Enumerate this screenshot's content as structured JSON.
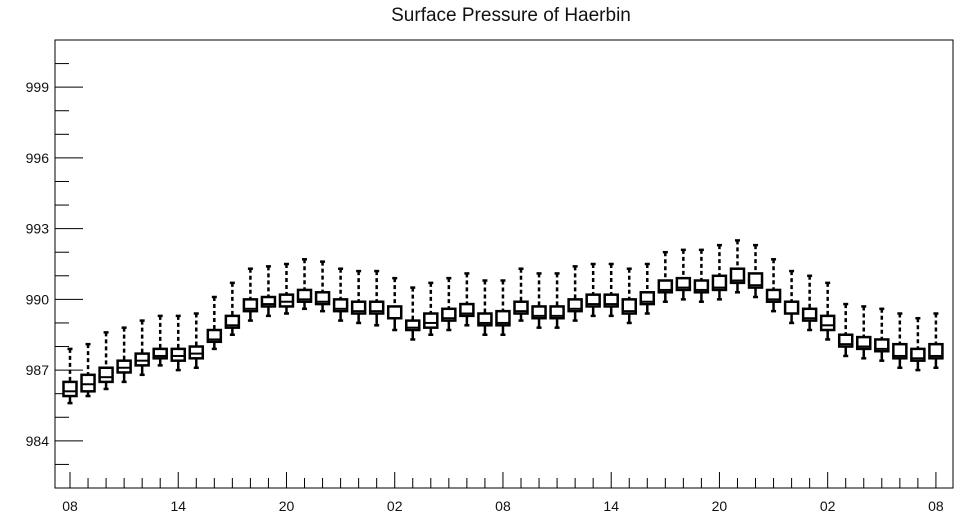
{
  "chart_data": {
    "type": "box",
    "title": "Surface Pressure of Haerbin",
    "xlabel": "",
    "ylabel": "",
    "ylim": [
      982,
      1001
    ],
    "y_ticks": [
      984,
      987,
      990,
      993,
      996,
      999
    ],
    "x_tick_labels": [
      "08",
      "14",
      "20",
      "02",
      "08",
      "14",
      "20",
      "02",
      "08"
    ],
    "x_tick_positions": [
      0,
      6,
      12,
      18,
      24,
      30,
      36,
      42,
      48
    ],
    "grid": false,
    "colors": {
      "box_fill": "#ffffff",
      "stroke": "#000000"
    },
    "series": [
      {
        "x": [
          0,
          1,
          2,
          3,
          4,
          5,
          6,
          7,
          8,
          9,
          10,
          11,
          12,
          13,
          14,
          15,
          16,
          17,
          18,
          19,
          20,
          21,
          22,
          23,
          24,
          25,
          26,
          27,
          28,
          29,
          30,
          31,
          32,
          33,
          34,
          35,
          36,
          37,
          38,
          39,
          40,
          41,
          42,
          43,
          44,
          45,
          46,
          47,
          48
        ],
        "median": [
          986.1,
          986.4,
          986.7,
          987.1,
          987.4,
          987.6,
          987.6,
          987.7,
          988.3,
          988.9,
          989.6,
          989.8,
          989.9,
          990.0,
          989.9,
          989.6,
          989.5,
          989.5,
          989.2,
          988.8,
          989.0,
          989.2,
          989.4,
          989.0,
          989.0,
          989.5,
          989.3,
          989.3,
          989.6,
          989.8,
          989.8,
          989.5,
          989.9,
          990.4,
          990.5,
          990.4,
          990.5,
          990.8,
          990.6,
          990.0,
          989.4,
          989.2,
          988.9,
          988.1,
          988.0,
          987.9,
          987.6,
          987.5,
          987.6
        ],
        "q1": [
          985.9,
          986.1,
          986.5,
          986.9,
          987.2,
          987.5,
          987.4,
          987.5,
          988.2,
          988.8,
          989.5,
          989.7,
          989.7,
          989.9,
          989.8,
          989.5,
          989.4,
          989.4,
          989.2,
          988.7,
          988.8,
          989.1,
          989.3,
          988.9,
          988.9,
          989.4,
          989.2,
          989.2,
          989.5,
          989.7,
          989.7,
          989.4,
          989.8,
          990.3,
          990.4,
          990.3,
          990.4,
          990.7,
          990.5,
          989.9,
          989.4,
          989.1,
          988.7,
          988.0,
          987.9,
          987.8,
          987.5,
          987.4,
          987.5
        ],
        "q3": [
          986.5,
          986.8,
          987.1,
          987.4,
          987.7,
          987.9,
          987.9,
          988.0,
          988.7,
          989.3,
          990.0,
          990.1,
          990.2,
          990.4,
          990.3,
          990.0,
          989.9,
          989.9,
          989.7,
          989.1,
          989.4,
          989.6,
          989.8,
          989.4,
          989.5,
          989.9,
          989.7,
          989.7,
          990.0,
          990.2,
          990.2,
          990.0,
          990.3,
          990.8,
          990.9,
          990.8,
          991.0,
          991.3,
          991.1,
          990.4,
          989.9,
          989.6,
          989.3,
          988.5,
          988.4,
          988.3,
          988.1,
          987.9,
          988.1
        ],
        "whisker_low": [
          985.6,
          985.9,
          986.2,
          986.5,
          986.8,
          987.2,
          987.0,
          987.1,
          987.9,
          988.5,
          989.1,
          989.3,
          989.4,
          989.6,
          989.5,
          989.1,
          989.0,
          988.9,
          988.7,
          988.3,
          988.5,
          988.7,
          988.9,
          988.5,
          988.5,
          989.1,
          988.8,
          988.8,
          989.1,
          989.3,
          989.3,
          989.0,
          989.4,
          989.9,
          990.0,
          989.9,
          990.0,
          990.3,
          990.1,
          989.5,
          989.0,
          988.7,
          988.3,
          987.6,
          987.5,
          987.4,
          987.1,
          987.0,
          987.1
        ],
        "whisker_high": [
          987.9,
          988.1,
          988.6,
          988.8,
          989.1,
          989.3,
          989.3,
          989.4,
          990.1,
          990.7,
          991.3,
          991.4,
          991.5,
          991.7,
          991.6,
          991.3,
          991.2,
          991.2,
          990.9,
          990.5,
          990.7,
          990.9,
          991.1,
          990.8,
          990.8,
          991.3,
          991.1,
          991.1,
          991.4,
          991.5,
          991.5,
          991.3,
          991.5,
          992.0,
          992.1,
          992.1,
          992.3,
          992.5,
          992.3,
          991.7,
          991.2,
          991.0,
          990.7,
          989.8,
          989.7,
          989.6,
          989.4,
          989.2,
          989.4
        ]
      }
    ]
  }
}
